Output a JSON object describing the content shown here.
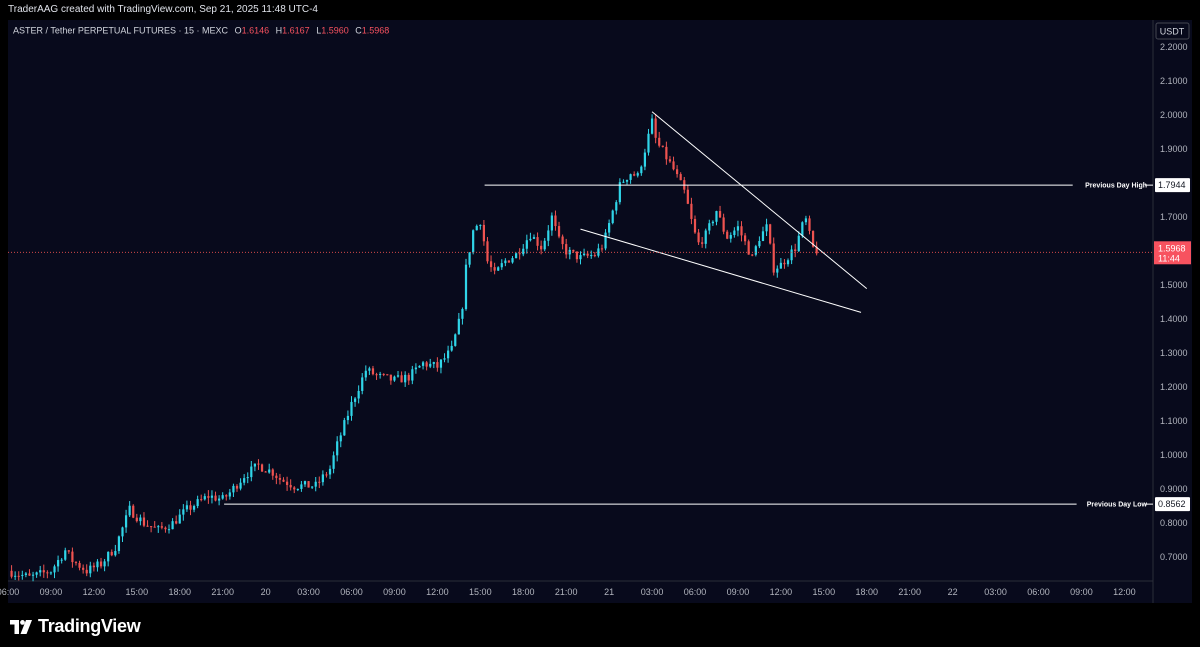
{
  "header": {
    "credit": "TraderAAG created with TradingView.com, Sep 21, 2025 11:48 UTC-4"
  },
  "legend": {
    "symbol": "ASTER / Tether PERPETUAL FUTURES · 15 · MEXC",
    "o_label": "O",
    "o_value": "1.6146",
    "h_label": "H",
    "h_value": "1.6167",
    "l_label": "L",
    "l_value": "1.5960",
    "c_label": "C",
    "c_value": "1.5968"
  },
  "currency": "USDT",
  "brand": "TradingView",
  "colors": {
    "up": "#26a69a",
    "up_bright": "#30d5e8",
    "down": "#ef5350",
    "down_bright": "#f7525f",
    "line": "#ffffff",
    "last_price_bg": "#f7525f"
  },
  "price_tag": {
    "price": "1.5968",
    "countdown": "11:44"
  },
  "chart_data": {
    "type": "candlestick",
    "ylim": [
      0.63,
      2.28
    ],
    "y_ticks": [
      "2.2000",
      "2.1000",
      "2.0000",
      "1.9000",
      "1.8000",
      "1.7000",
      "1.6000",
      "1.5000",
      "1.4000",
      "1.3000",
      "1.2000",
      "1.1000",
      "1.0000",
      "0.9000",
      "0.8000",
      "0.7000"
    ],
    "x_ticks": [
      "06:00",
      "09:00",
      "12:00",
      "15:00",
      "18:00",
      "21:00",
      "20",
      "03:00",
      "06:00",
      "09:00",
      "12:00",
      "15:00",
      "18:00",
      "21:00",
      "21",
      "03:00",
      "06:00",
      "09:00",
      "12:00",
      "15:00",
      "18:00",
      "21:00",
      "22",
      "03:00",
      "06:00",
      "09:00",
      "12:00"
    ],
    "x_tick_hours": [
      6,
      9,
      12,
      15,
      18,
      21,
      24,
      27,
      30,
      33,
      36,
      39,
      42,
      45,
      48,
      51,
      54,
      57,
      60,
      63,
      66,
      69,
      72,
      75,
      78,
      81,
      84
    ],
    "x_range_hours": [
      6,
      86
    ],
    "candle_interval_min": 15,
    "anchor_prices": [
      [
        6.0,
        0.66
      ],
      [
        7.5,
        0.64
      ],
      [
        9.0,
        0.66
      ],
      [
        10.0,
        0.72
      ],
      [
        10.5,
        0.69
      ],
      [
        11.5,
        0.66
      ],
      [
        12.5,
        0.68
      ],
      [
        13.5,
        0.73
      ],
      [
        14.5,
        0.84
      ],
      [
        15.0,
        0.82
      ],
      [
        15.5,
        0.8
      ],
      [
        16.5,
        0.78
      ],
      [
        17.5,
        0.8
      ],
      [
        18.5,
        0.84
      ],
      [
        20.0,
        0.88
      ],
      [
        21.0,
        0.87
      ],
      [
        21.5,
        0.89
      ],
      [
        22.5,
        0.94
      ],
      [
        23.5,
        0.97
      ],
      [
        24.5,
        0.95
      ],
      [
        25.0,
        0.93
      ],
      [
        26.0,
        0.91
      ],
      [
        27.5,
        0.91
      ],
      [
        28.5,
        0.96
      ],
      [
        29.0,
        1.03
      ],
      [
        29.5,
        1.09
      ],
      [
        30.0,
        1.15
      ],
      [
        30.5,
        1.2
      ],
      [
        31.0,
        1.25
      ],
      [
        32.0,
        1.23
      ],
      [
        33.0,
        1.22
      ],
      [
        34.0,
        1.23
      ],
      [
        35.0,
        1.27
      ],
      [
        36.0,
        1.26
      ],
      [
        37.0,
        1.31
      ],
      [
        37.7,
        1.42
      ],
      [
        38.0,
        1.55
      ],
      [
        38.5,
        1.66
      ],
      [
        39.0,
        1.69
      ],
      [
        39.5,
        1.57
      ],
      [
        40.0,
        1.53
      ],
      [
        40.7,
        1.57
      ],
      [
        41.5,
        1.59
      ],
      [
        42.5,
        1.65
      ],
      [
        43.3,
        1.61
      ],
      [
        44.0,
        1.7
      ],
      [
        44.5,
        1.63
      ],
      [
        45.0,
        1.6
      ],
      [
        46.0,
        1.58
      ],
      [
        47.0,
        1.59
      ],
      [
        47.6,
        1.62
      ],
      [
        48.0,
        1.68
      ],
      [
        48.8,
        1.8
      ],
      [
        49.5,
        1.83
      ],
      [
        50.0,
        1.82
      ],
      [
        50.7,
        1.93
      ],
      [
        51.0,
        1.98
      ],
      [
        51.3,
        1.92
      ],
      [
        51.8,
        1.89
      ],
      [
        52.5,
        1.84
      ],
      [
        53.3,
        1.77
      ],
      [
        53.8,
        1.68
      ],
      [
        54.2,
        1.62
      ],
      [
        54.8,
        1.65
      ],
      [
        55.5,
        1.72
      ],
      [
        56.2,
        1.64
      ],
      [
        57.0,
        1.67
      ],
      [
        58.0,
        1.58
      ],
      [
        58.5,
        1.64
      ],
      [
        59.0,
        1.67
      ],
      [
        59.5,
        1.55
      ],
      [
        60.0,
        1.56
      ],
      [
        61.0,
        1.61
      ],
      [
        61.7,
        1.7
      ],
      [
        62.2,
        1.61
      ],
      [
        62.6,
        1.6
      ]
    ],
    "last_price": 1.5968,
    "horizontal_levels": [
      {
        "label": "Previous Day High",
        "value": 1.7944,
        "value_text": "1.7944",
        "start_hour": 39.3
      },
      {
        "label": "Previous Day Low",
        "value": 0.8562,
        "value_text": "0.8562",
        "start_hour": 21.1
      }
    ],
    "trendlines": [
      {
        "name": "upper",
        "points": [
          [
            51.0,
            2.01
          ],
          [
            66.0,
            1.49
          ]
        ]
      },
      {
        "name": "lower",
        "points": [
          [
            46.0,
            1.665
          ],
          [
            65.6,
            1.42
          ]
        ]
      }
    ]
  }
}
